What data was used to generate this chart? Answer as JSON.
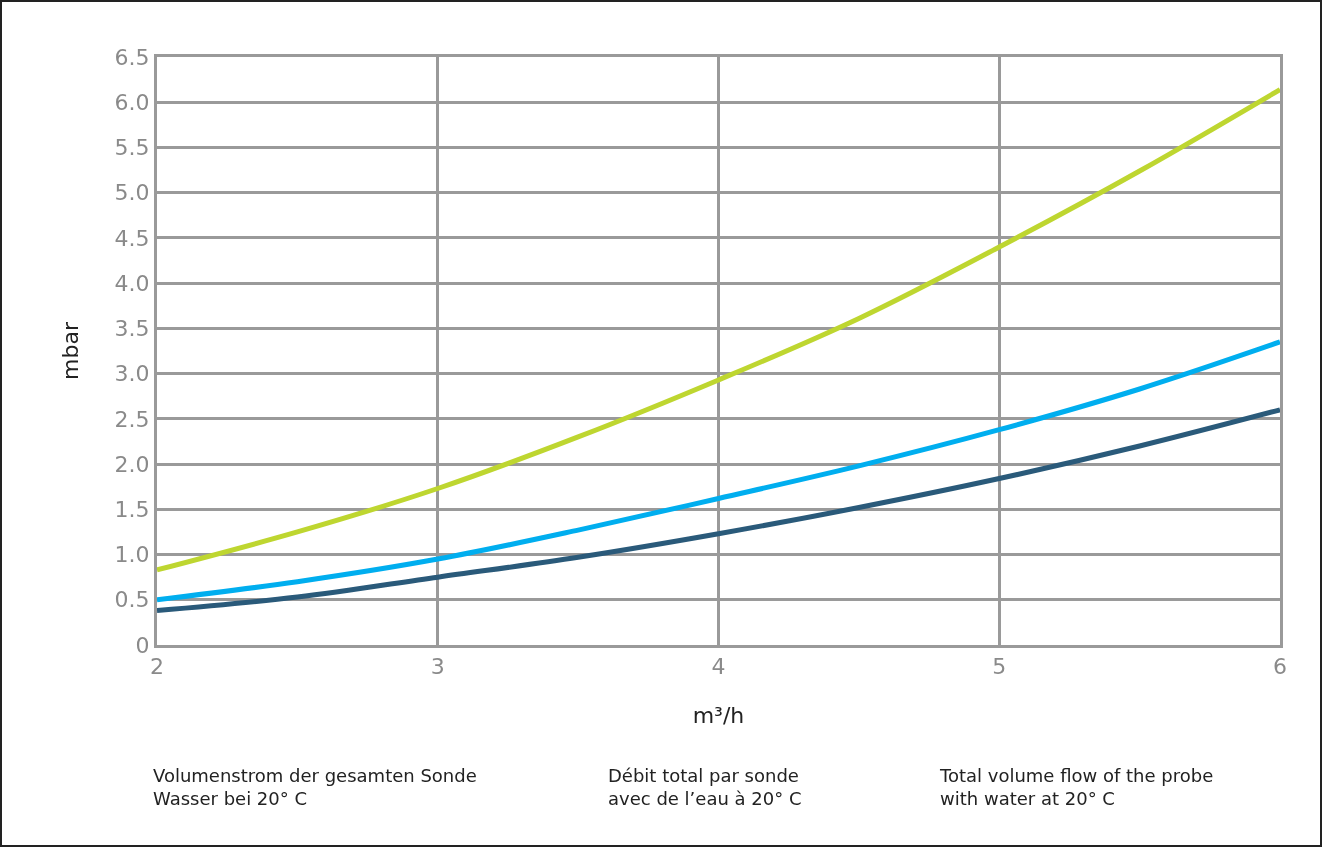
{
  "chart_data": {
    "type": "line",
    "xlabel": "m³/h",
    "ylabel": "mbar",
    "x": [
      2,
      2.5,
      3,
      3.5,
      4,
      4.5,
      5,
      5.5,
      6
    ],
    "series": [
      {
        "color": "#bed630",
        "values": [
          0.83,
          1.25,
          1.73,
          2.3,
          2.93,
          3.61,
          4.4,
          5.24,
          6.14
        ]
      },
      {
        "color": "#00aeef",
        "values": [
          0.5,
          0.7,
          0.95,
          1.27,
          1.62,
          1.98,
          2.38,
          2.83,
          3.35
        ]
      },
      {
        "color": "#2a5a7a",
        "values": [
          0.38,
          0.53,
          0.75,
          0.97,
          1.23,
          1.52,
          1.84,
          2.2,
          2.6
        ]
      }
    ],
    "xlim": [
      2,
      6
    ],
    "xticks": [
      2,
      3,
      4,
      5,
      6
    ],
    "ylim": [
      0,
      6.5
    ],
    "yticks": [
      0,
      {
        "value": 0.5,
        "label": "0.5"
      },
      {
        "value": 1,
        "label": "1.0"
      },
      {
        "value": 1.5,
        "label": "1.5"
      },
      {
        "value": 2,
        "label": "2.0"
      },
      {
        "value": 2.5,
        "label": "2.5"
      },
      {
        "value": 3,
        "label": "3.0"
      },
      {
        "value": 3.5,
        "label": "3.5"
      },
      {
        "value": 4,
        "label": "4.0"
      },
      {
        "value": 4.5,
        "label": "4.5"
      },
      {
        "value": 5,
        "label": "5.0"
      },
      {
        "value": 5.5,
        "label": "5.5"
      },
      {
        "value": 6,
        "label": "6.0"
      },
      {
        "value": 6.5,
        "label": "6.5"
      }
    ],
    "grid": true,
    "marker": "none",
    "line_style": "solid",
    "annotations": [
      "Volumenstrom der gesamten Sonde\nWasser bei 20° C",
      "Débit total par sonde\navec de l’eau à 20° C",
      "Total volume flow of the probe\nwith water at 20° C"
    ]
  }
}
